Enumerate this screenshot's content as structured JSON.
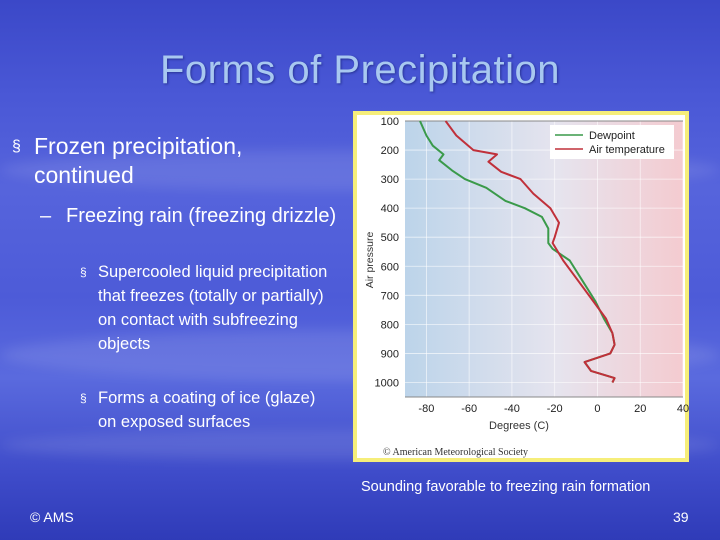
{
  "slide": {
    "title": "Forms of Precipitation",
    "bullet1": "Frozen precipitation, continued",
    "bullet2": "Freezing rain (freezing drizzle)",
    "bullet3": "Supercooled liquid precipitation that freezes (totally or partially) on contact  with subfreezing objects",
    "bullet4": "Forms a coating of ice (glaze) on exposed surfaces",
    "bullet_marker": "§",
    "dash_marker": "–",
    "caption": "Sounding favorable to freezing rain formation",
    "footer_left": "© AMS",
    "page_number": "39"
  },
  "colors": {
    "dewpoint": "#3a9a4a",
    "air_temperature": "#c0303a",
    "frame": "#f6ee7a"
  },
  "chart_data": {
    "type": "line",
    "xlabel": "Degrees (C)",
    "ylabel": "Air pressure",
    "xlim": [
      -90,
      40
    ],
    "ylim": [
      100,
      1050
    ],
    "x_ticks": [
      -80,
      -60,
      -40,
      -20,
      0,
      20,
      40
    ],
    "y_ticks": [
      100,
      200,
      300,
      400,
      500,
      600,
      700,
      800,
      900,
      1000
    ],
    "legend_position": "top-right",
    "credit": "© American Meteorological Society",
    "series": [
      {
        "name": "Dewpoint",
        "points": [
          [
            -83,
            100
          ],
          [
            -80,
            150
          ],
          [
            -77,
            185
          ],
          [
            -72,
            215
          ],
          [
            -74,
            235
          ],
          [
            -68,
            270
          ],
          [
            -62,
            300
          ],
          [
            -52,
            330
          ],
          [
            -43,
            375
          ],
          [
            -34,
            400
          ],
          [
            -26,
            430
          ],
          [
            -23,
            470
          ],
          [
            -23,
            520
          ],
          [
            -21,
            540
          ],
          [
            -13,
            580
          ],
          [
            -7,
            650
          ],
          [
            -1,
            720
          ],
          [
            3,
            780
          ],
          [
            7,
            830
          ],
          [
            8,
            870
          ],
          [
            6,
            900
          ],
          [
            -6,
            930
          ],
          [
            -3,
            960
          ],
          [
            8,
            985
          ],
          [
            7,
            1000
          ]
        ]
      },
      {
        "name": "Air temperature",
        "points": [
          [
            -71,
            100
          ],
          [
            -66,
            150
          ],
          [
            -58,
            200
          ],
          [
            -47,
            215
          ],
          [
            -51,
            240
          ],
          [
            -45,
            275
          ],
          [
            -36,
            300
          ],
          [
            -30,
            350
          ],
          [
            -22,
            400
          ],
          [
            -18,
            450
          ],
          [
            -20,
            500
          ],
          [
            -21,
            520
          ],
          [
            -16,
            580
          ],
          [
            -9,
            650
          ],
          [
            -2,
            720
          ],
          [
            4,
            780
          ],
          [
            7,
            830
          ],
          [
            8,
            870
          ],
          [
            6,
            900
          ],
          [
            -6,
            930
          ],
          [
            -3,
            960
          ],
          [
            8,
            985
          ],
          [
            7,
            1000
          ]
        ]
      }
    ]
  }
}
